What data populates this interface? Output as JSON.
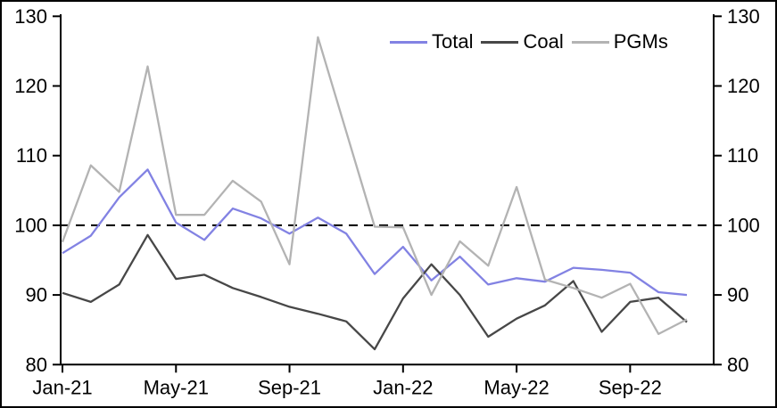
{
  "chart_data": {
    "type": "line",
    "title": "",
    "xlabel": "",
    "ylabel": "",
    "x": [
      "Jan-21",
      "Feb-21",
      "Mar-21",
      "Apr-21",
      "May-21",
      "Jun-21",
      "Jul-21",
      "Aug-21",
      "Sep-21",
      "Oct-21",
      "Nov-21",
      "Dec-21",
      "Jan-22",
      "Feb-22",
      "Mar-22",
      "Apr-22",
      "May-22",
      "Jun-22",
      "Jul-22",
      "Aug-22",
      "Sep-22",
      "Oct-22",
      "Nov-22"
    ],
    "x_tick_labels": [
      "Jan-21",
      "May-21",
      "Sep-21",
      "Jan-22",
      "May-22",
      "Sep-22"
    ],
    "x_tick_indices": [
      0,
      4,
      8,
      12,
      16,
      20
    ],
    "y_ticks": [
      "80",
      "90",
      "100",
      "110",
      "120",
      "130"
    ],
    "ylim": [
      80,
      130
    ],
    "grid": false,
    "legend_position": "top-right-inside",
    "reference_line": {
      "value": 100,
      "style": "dashed",
      "color": "#000000"
    },
    "axis_color": "#000000",
    "series": [
      {
        "name": "Total",
        "color": "#8282e3",
        "values": [
          96,
          98.5,
          104,
          108,
          100.4,
          97.9,
          102.4,
          101,
          98.8,
          101.1,
          98.8,
          93,
          96.9,
          92.1,
          95.5,
          91.5,
          92.4,
          91.9,
          93.9,
          93.6,
          93.2,
          90.4,
          90
        ]
      },
      {
        "name": "Coal",
        "color": "#474747",
        "values": [
          90.3,
          89,
          91.5,
          98.6,
          92.3,
          92.9,
          91,
          89.7,
          88.3,
          87.3,
          86.2,
          82.2,
          89.5,
          94.4,
          90,
          84,
          86.6,
          88.5,
          92,
          84.7,
          89,
          89.6,
          86.1
        ]
      },
      {
        "name": "PGMs",
        "color": "#b3b3b3",
        "values": [
          97.6,
          108.6,
          104.8,
          122.8,
          101.5,
          101.5,
          106.4,
          103.4,
          94.4,
          127,
          113.4,
          99.8,
          99.7,
          90,
          97.7,
          94.2,
          105.5,
          92.2,
          91,
          89.6,
          91.6,
          84.4,
          86.5
        ]
      }
    ]
  }
}
